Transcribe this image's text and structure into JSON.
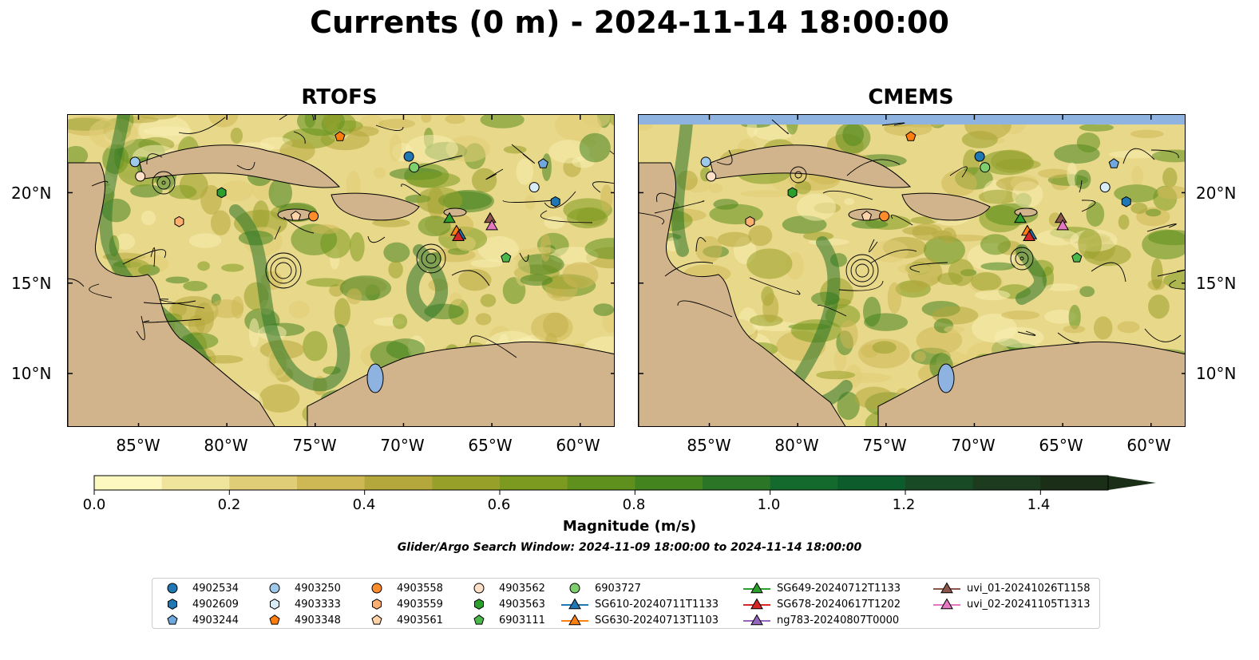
{
  "title": "Currents (0 m) - 2024-11-14 18:00:00",
  "panels": [
    {
      "title": "RTOFS"
    },
    {
      "title": "CMEMS"
    }
  ],
  "lat_labels": [
    "20°N",
    "15°N",
    "10°N"
  ],
  "lon_labels": [
    "85°W",
    "80°W",
    "75°W",
    "70°W",
    "65°W",
    "60°W"
  ],
  "colorbar": {
    "label": "Magnitude (m/s)",
    "ticks": [
      "0.0",
      "0.2",
      "0.4",
      "0.6",
      "0.8",
      "1.0",
      "1.2",
      "1.4"
    ],
    "range": [
      0,
      1.5
    ],
    "colors": [
      "#fdf7c0",
      "#f0e39c",
      "#e0cd77",
      "#cdb855",
      "#b4a83c",
      "#97a12a",
      "#7c9a1f",
      "#5f8f1d",
      "#43841f",
      "#2a7526",
      "#136a2c",
      "#0d5c2b",
      "#184a25",
      "#1c3b1f",
      "#1b2e18"
    ]
  },
  "subtitle": "Glider/Argo Search Window: 2024-11-09 18:00:00 to 2024-11-14 18:00:00",
  "legend": [
    {
      "label": "4902534",
      "marker": "circle",
      "color": "#1f77b4"
    },
    {
      "label": "4902609",
      "marker": "hexagon",
      "color": "#1f77b4"
    },
    {
      "label": "4903244",
      "marker": "pentagon",
      "color": "#6fa8dc"
    },
    {
      "label": "4903250",
      "marker": "circle",
      "color": "#9fc9ea"
    },
    {
      "label": "4903333",
      "marker": "hexagon",
      "color": "#d8ecf8"
    },
    {
      "label": "4903348",
      "marker": "pentagon",
      "color": "#ff7f0e"
    },
    {
      "label": "4903558",
      "marker": "circle",
      "color": "#ff8c2a"
    },
    {
      "label": "4903559",
      "marker": "hexagon",
      "color": "#ffb070"
    },
    {
      "label": "4903561",
      "marker": "pentagon",
      "color": "#ffd3a8"
    },
    {
      "label": "4903562",
      "marker": "circle",
      "color": "#fde0c6"
    },
    {
      "label": "4903563",
      "marker": "hexagon",
      "color": "#2ca02c"
    },
    {
      "label": "6903111",
      "marker": "pentagon",
      "color": "#4cb84c"
    },
    {
      "label": "6903727",
      "marker": "circle",
      "color": "#7fcf6f"
    },
    {
      "label": "SG610-20240711T1133",
      "marker": "triangle",
      "color": "#1f77b4"
    },
    {
      "label": "SG630-20240713T1103",
      "marker": "triangle",
      "color": "#ff7f0e"
    },
    {
      "label": "SG649-20240712T1133",
      "marker": "triangle",
      "color": "#2ca02c"
    },
    {
      "label": "SG678-20240617T1202",
      "marker": "triangle",
      "color": "#d62728"
    },
    {
      "label": "ng783-20240807T0000",
      "marker": "triangle",
      "color": "#9467bd"
    },
    {
      "label": "uvi_01-20241026T1158",
      "marker": "triangle",
      "color": "#8c564b"
    },
    {
      "label": "uvi_02-20241105T1313",
      "marker": "triangle",
      "color": "#e377c2"
    }
  ],
  "markers": [
    {
      "id": "4903244",
      "lon": -85.2,
      "lat": 21.7,
      "marker": "circle",
      "color": "#9fc9ea"
    },
    {
      "id": "4903562",
      "lon": -84.9,
      "lat": 20.9,
      "marker": "circle",
      "color": "#fde0c6"
    },
    {
      "id": "4903561",
      "lon": -82.7,
      "lat": 18.4,
      "marker": "hexagon",
      "color": "#ffb070"
    },
    {
      "id": "4903563",
      "lon": -80.3,
      "lat": 20.0,
      "marker": "hexagon",
      "color": "#2ca02c"
    },
    {
      "id": "4903559",
      "lon": -76.1,
      "lat": 18.7,
      "marker": "pentagon",
      "color": "#ffd3a8"
    },
    {
      "id": "4903558",
      "lon": -75.1,
      "lat": 18.7,
      "marker": "circle",
      "color": "#ff8c2a"
    },
    {
      "id": "4903348",
      "lon": -73.6,
      "lat": 23.1,
      "marker": "pentagon",
      "color": "#ff7f0e"
    },
    {
      "id": "4902534",
      "lon": -69.7,
      "lat": 22.0,
      "marker": "circle",
      "color": "#1f77b4"
    },
    {
      "id": "6903727",
      "lon": -69.4,
      "lat": 21.4,
      "marker": "circle",
      "color": "#7fcf6f"
    },
    {
      "id": "4903244b",
      "lon": -62.1,
      "lat": 21.6,
      "marker": "pentagon",
      "color": "#6fa8dc"
    },
    {
      "id": "4903250",
      "lon": -62.6,
      "lat": 20.3,
      "marker": "circle",
      "color": "#d8ecf8"
    },
    {
      "id": "4902609",
      "lon": -61.4,
      "lat": 19.5,
      "marker": "hexagon",
      "color": "#1f77b4"
    },
    {
      "id": "6903111",
      "lon": -64.2,
      "lat": 16.4,
      "marker": "pentagon",
      "color": "#4cb84c"
    },
    {
      "id": "SG649",
      "lon": -67.4,
      "lat": 18.6,
      "marker": "triangle",
      "color": "#2ca02c"
    },
    {
      "id": "SG630",
      "lon": -67.0,
      "lat": 17.9,
      "marker": "triangle",
      "color": "#ff7f0e"
    },
    {
      "id": "SG610",
      "lon": -66.8,
      "lat": 17.7,
      "marker": "triangle",
      "color": "#1f77b4"
    },
    {
      "id": "SG678",
      "lon": -66.9,
      "lat": 17.6,
      "marker": "triangle",
      "color": "#d62728"
    },
    {
      "id": "uvi_01",
      "lon": -65.1,
      "lat": 18.6,
      "marker": "triangle",
      "color": "#8c564b"
    },
    {
      "id": "uvi_02",
      "lon": -65.0,
      "lat": 18.2,
      "marker": "triangle",
      "color": "#e377c2"
    }
  ]
}
